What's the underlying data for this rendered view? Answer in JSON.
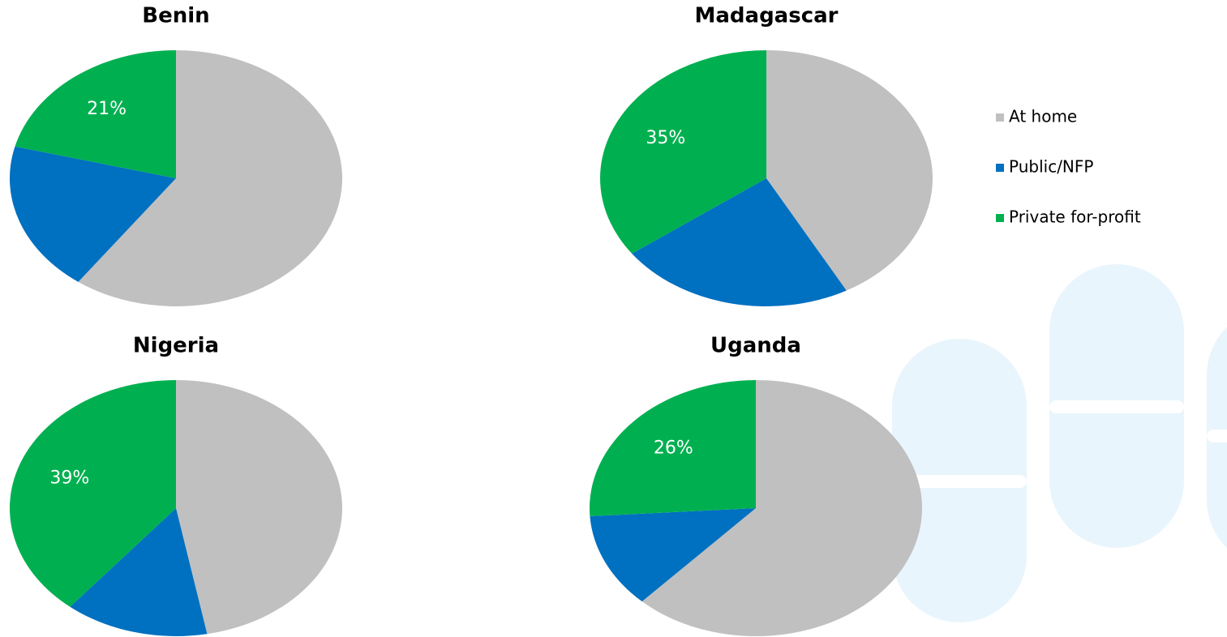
{
  "chart_data": [
    {
      "type": "pie",
      "title": "Benin",
      "categories": [
        "At home",
        "Public/NFP",
        "Private for-profit"
      ],
      "values": [
        60,
        19,
        21
      ],
      "value_labels": [
        null,
        null,
        "21%"
      ],
      "colors": [
        "#c0c0c0",
        "#0070c0",
        "#00b050"
      ]
    },
    {
      "type": "pie",
      "title": "Madagascar",
      "categories": [
        "At home",
        "Public/NFP",
        "Private for-profit"
      ],
      "values": [
        42,
        23,
        35
      ],
      "value_labels": [
        null,
        null,
        "35%"
      ],
      "colors": [
        "#c0c0c0",
        "#0070c0",
        "#00b050"
      ]
    },
    {
      "type": "pie",
      "title": "Nigeria",
      "categories": [
        "At home",
        "Public/NFP",
        "Private for-profit"
      ],
      "values": [
        47,
        14,
        39
      ],
      "value_labels": [
        null,
        null,
        "39%"
      ],
      "colors": [
        "#c0c0c0",
        "#0070c0",
        "#00b050"
      ]
    },
    {
      "type": "pie",
      "title": "Uganda",
      "categories": [
        "At home",
        "Public/NFP",
        "Private for-profit"
      ],
      "values": [
        62,
        12,
        26
      ],
      "value_labels": [
        null,
        null,
        "26%"
      ],
      "colors": [
        "#c0c0c0",
        "#0070c0",
        "#00b050"
      ]
    }
  ]
}
